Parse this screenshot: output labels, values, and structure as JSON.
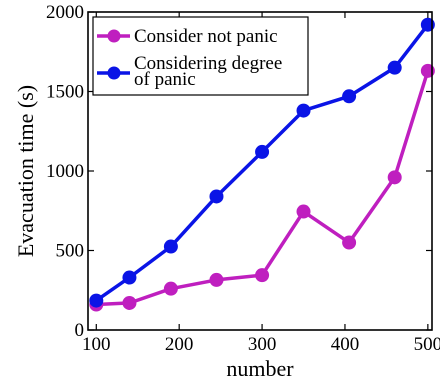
{
  "chart_data": {
    "type": "line",
    "xlabel": "number",
    "ylabel": "Evacuation time (s)",
    "xlim": [
      90,
      505
    ],
    "ylim": [
      0,
      2000
    ],
    "xticks": [
      100,
      200,
      300,
      400,
      500
    ],
    "yticks": [
      0,
      500,
      1000,
      1500,
      2000
    ],
    "x": [
      100,
      140,
      190,
      245,
      300,
      350,
      405,
      460,
      500
    ],
    "grid": false,
    "legend_position": "top-left",
    "series": [
      {
        "name": "Consider not panic",
        "color": "#bf1fbf",
        "values": [
          160,
          170,
          260,
          315,
          345,
          745,
          550,
          960,
          1630
        ]
      },
      {
        "name": "Considering degree of panic",
        "color": "#0a14e6",
        "values": [
          185,
          330,
          525,
          840,
          1120,
          1380,
          1470,
          1650,
          1920
        ]
      }
    ]
  }
}
